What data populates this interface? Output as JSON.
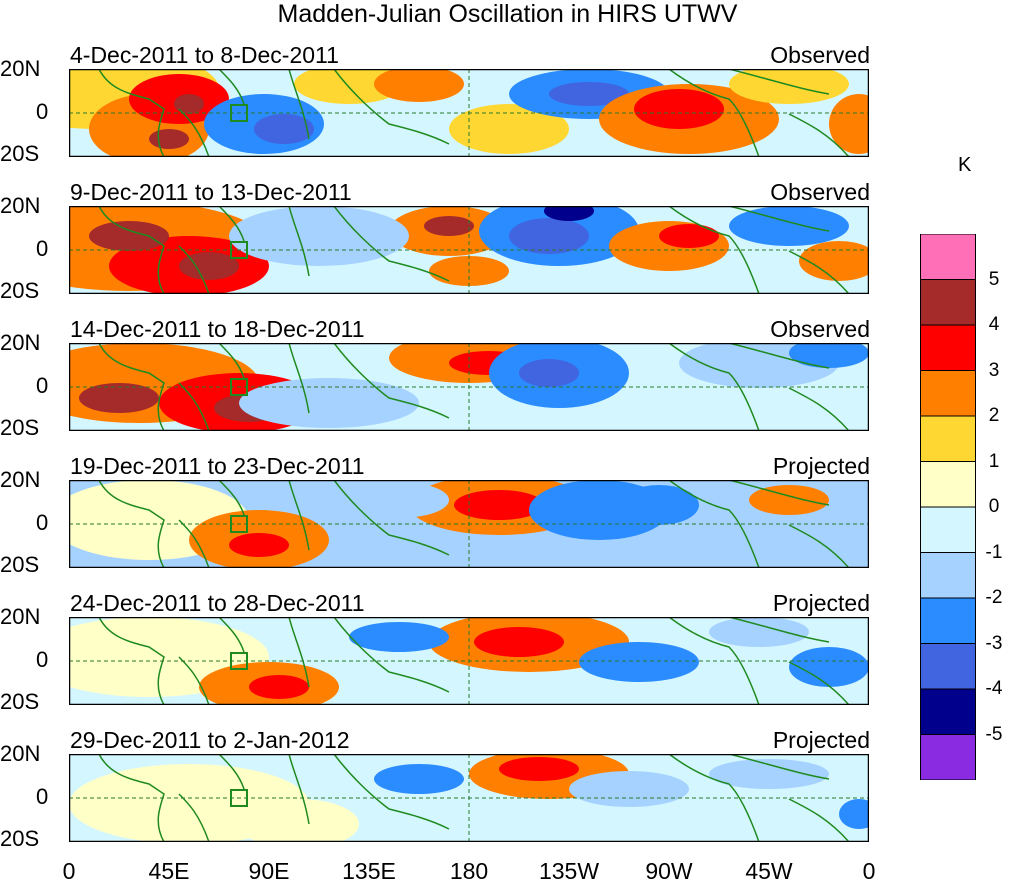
{
  "title": "Madden-Julian Oscillation in HIRS UTWV",
  "lat_labels": [
    "20N",
    "0",
    "20S"
  ],
  "x_ticks": [
    "0",
    "45E",
    "90E",
    "135E",
    "180",
    "135W",
    "90W",
    "45W",
    "0"
  ],
  "panels": [
    {
      "dates": "4-Dec-2011 to 8-Dec-2011",
      "kind": "Observed"
    },
    {
      "dates": "9-Dec-2011 to 13-Dec-2011",
      "kind": "Observed"
    },
    {
      "dates": "14-Dec-2011 to 18-Dec-2011",
      "kind": "Observed"
    },
    {
      "dates": "19-Dec-2011 to 23-Dec-2011",
      "kind": "Projected"
    },
    {
      "dates": "24-Dec-2011 to 28-Dec-2011",
      "kind": "Projected"
    },
    {
      "dates": "29-Dec-2011 to 2-Jan-2012",
      "kind": "Projected"
    }
  ],
  "colorbar": {
    "unit": "K",
    "labels": [
      "5",
      "4",
      "3",
      "2",
      "1",
      "0",
      "-1",
      "-2",
      "-3",
      "-4",
      "-5"
    ],
    "colors": [
      "#ff6fb8",
      "#a52a2a",
      "#ff0000",
      "#ff7f00",
      "#ffd733",
      "#ffffc8",
      "#d4f6ff",
      "#a6d2ff",
      "#2a8cff",
      "#4164e0",
      "#00008c",
      "#8a2be2"
    ]
  }
}
